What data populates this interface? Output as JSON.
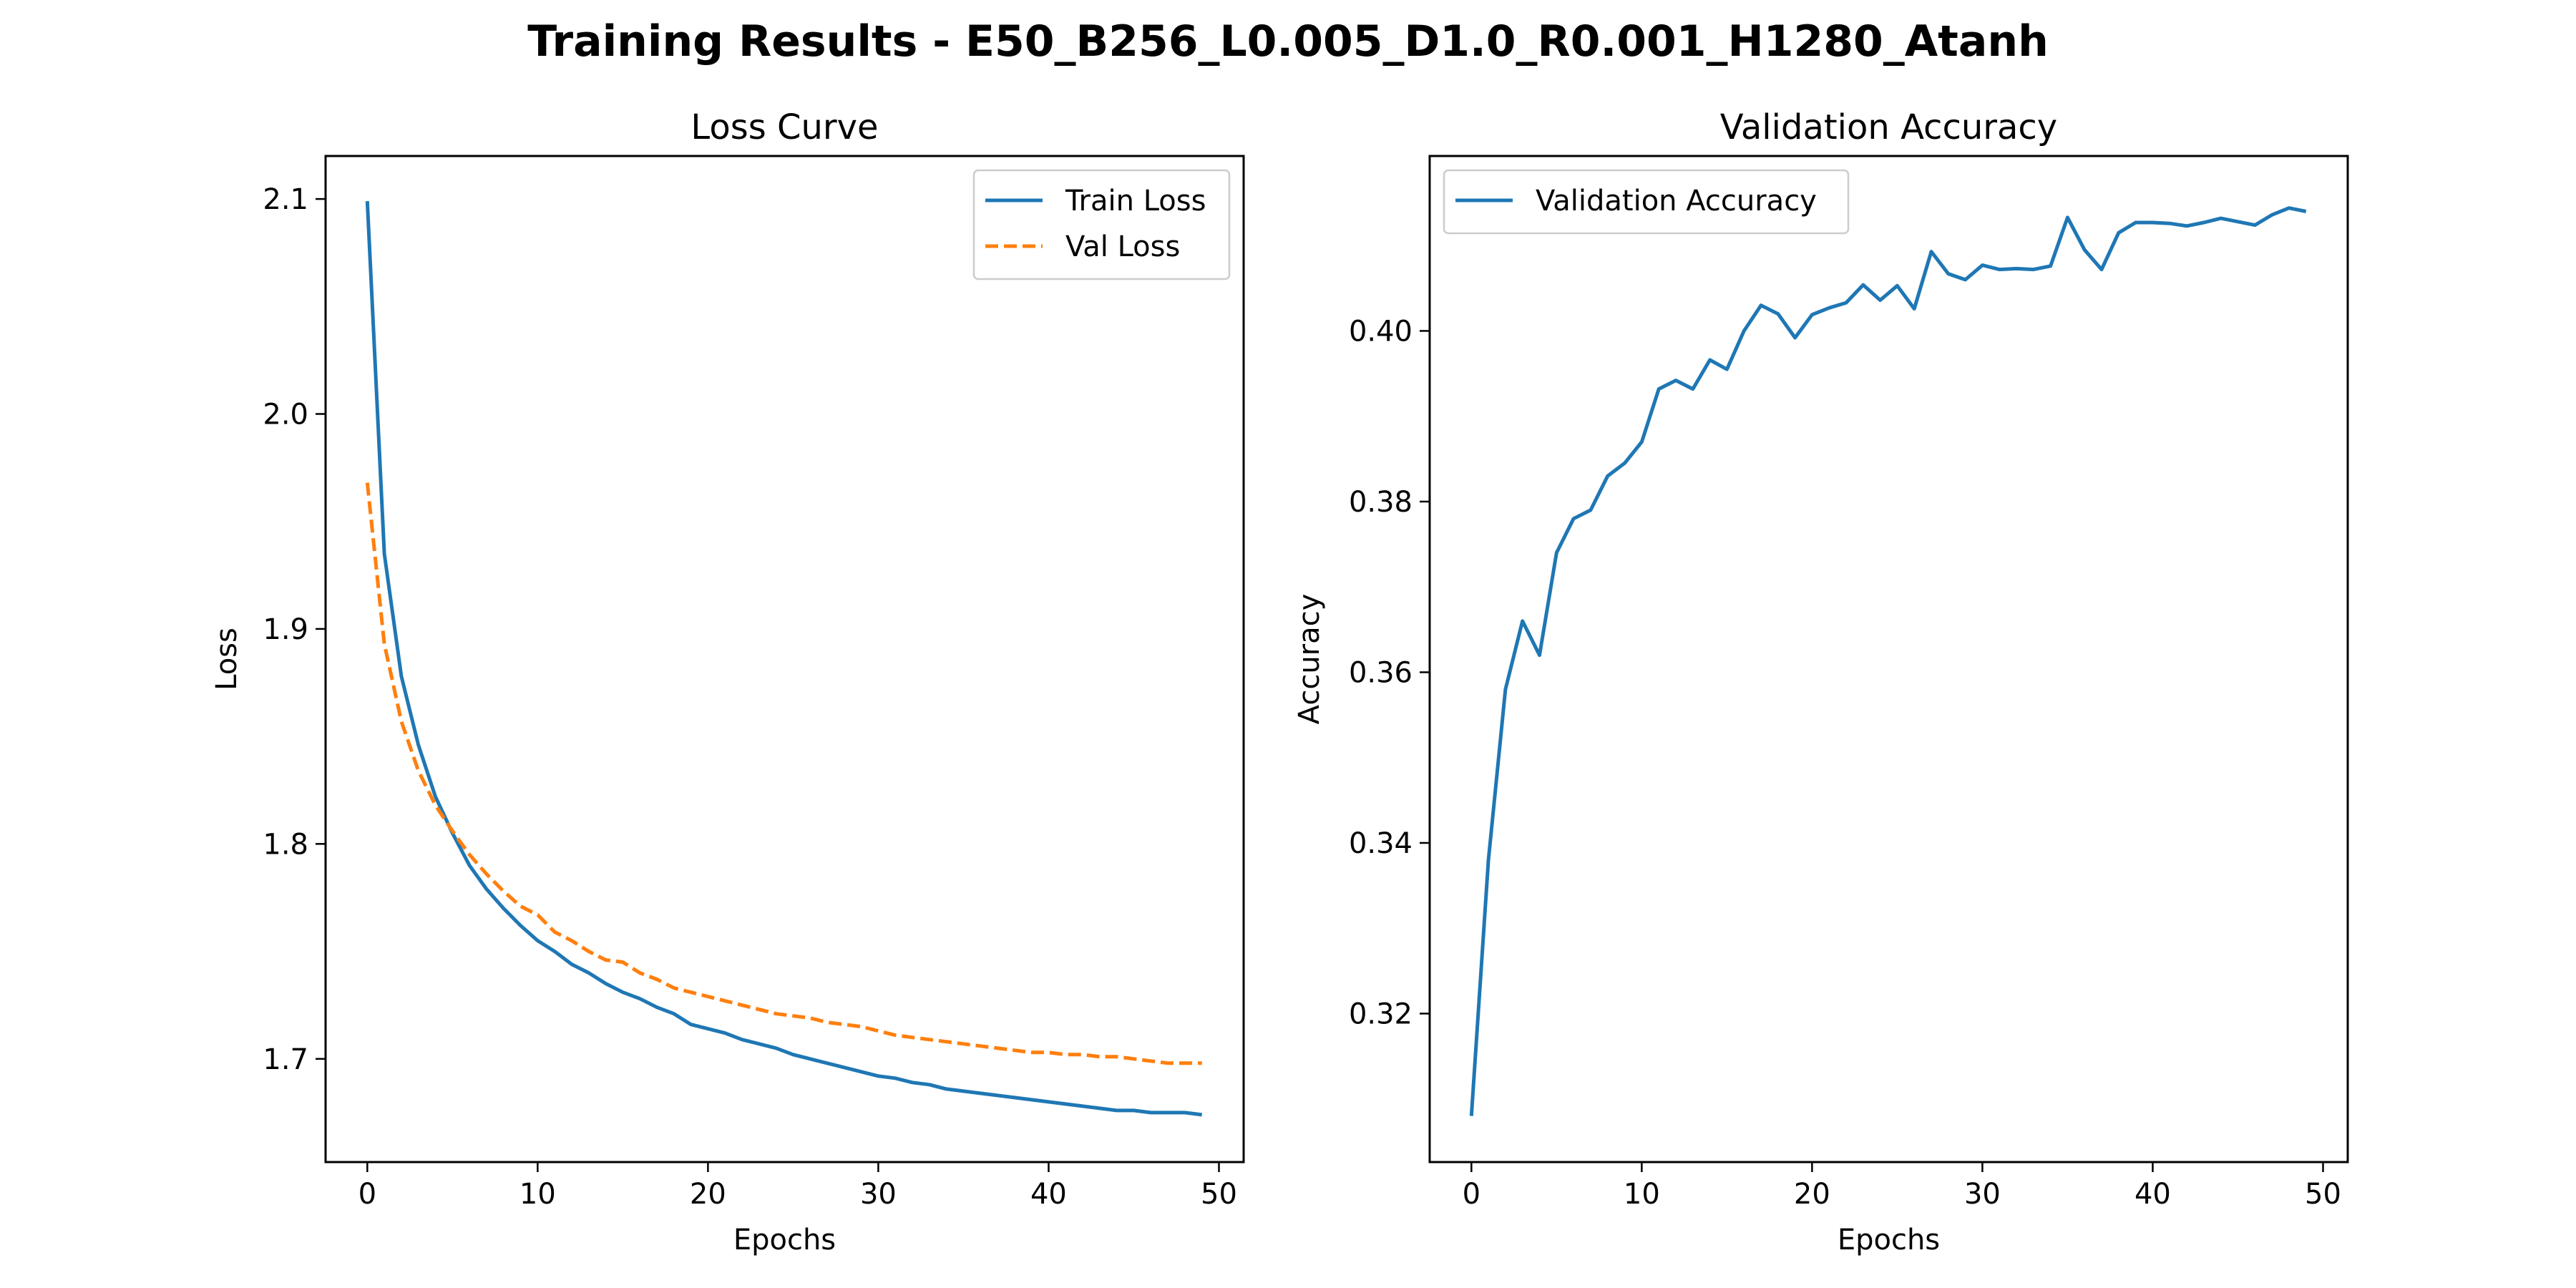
{
  "figure": {
    "title": "Training Results - E50_B256_L0.005_D1.0_R0.001_H1280_Atanh"
  },
  "chart_data": [
    {
      "type": "line",
      "title": "Loss Curve",
      "xlabel": "Epochs",
      "ylabel": "Loss",
      "xlim": [
        -2.45,
        51.45
      ],
      "ylim": [
        1.652,
        2.12
      ],
      "xticks": [
        0,
        10,
        20,
        30,
        40,
        50
      ],
      "yticks": [
        1.7,
        1.8,
        1.9,
        2.0,
        2.1
      ],
      "ytick_format": 1,
      "legend_position": "upper right",
      "grid": false,
      "x": [
        0,
        1,
        2,
        3,
        4,
        5,
        6,
        7,
        8,
        9,
        10,
        11,
        12,
        13,
        14,
        15,
        16,
        17,
        18,
        19,
        20,
        21,
        22,
        23,
        24,
        25,
        26,
        27,
        28,
        29,
        30,
        31,
        32,
        33,
        34,
        35,
        36,
        37,
        38,
        39,
        40,
        41,
        42,
        43,
        44,
        45,
        46,
        47,
        48,
        49
      ],
      "series": [
        {
          "name": "Train Loss",
          "color": "#1f77b4",
          "dash": "solid",
          "values": [
            2.099,
            1.935,
            1.878,
            1.846,
            1.822,
            1.805,
            1.79,
            1.779,
            1.77,
            1.762,
            1.755,
            1.75,
            1.744,
            1.74,
            1.735,
            1.731,
            1.728,
            1.724,
            1.721,
            1.716,
            1.714,
            1.712,
            1.709,
            1.707,
            1.705,
            1.702,
            1.7,
            1.698,
            1.696,
            1.694,
            1.692,
            1.691,
            1.689,
            1.688,
            1.686,
            1.685,
            1.684,
            1.683,
            1.682,
            1.681,
            1.68,
            1.679,
            1.678,
            1.677,
            1.676,
            1.676,
            1.675,
            1.675,
            1.675,
            1.674
          ]
        },
        {
          "name": "Val Loss",
          "color": "#ff7f0e",
          "dash": "dashed",
          "values": [
            1.968,
            1.893,
            1.857,
            1.834,
            1.818,
            1.806,
            1.795,
            1.786,
            1.778,
            1.771,
            1.767,
            1.759,
            1.755,
            1.75,
            1.746,
            1.745,
            1.74,
            1.737,
            1.733,
            1.731,
            1.729,
            1.727,
            1.725,
            1.723,
            1.721,
            1.72,
            1.719,
            1.717,
            1.716,
            1.715,
            1.713,
            1.711,
            1.71,
            1.709,
            1.708,
            1.707,
            1.706,
            1.705,
            1.704,
            1.703,
            1.703,
            1.702,
            1.702,
            1.701,
            1.701,
            1.7,
            1.699,
            1.698,
            1.698,
            1.698
          ]
        }
      ]
    },
    {
      "type": "line",
      "title": "Validation Accuracy",
      "xlabel": "Epochs",
      "ylabel": "Accuracy",
      "xlim": [
        -2.45,
        51.45
      ],
      "ylim": [
        0.3026,
        0.4205
      ],
      "xticks": [
        0,
        10,
        20,
        30,
        40,
        50
      ],
      "yticks": [
        0.32,
        0.34,
        0.36,
        0.38,
        0.4
      ],
      "ytick_format": 2,
      "legend_position": "upper left",
      "grid": false,
      "x": [
        0,
        1,
        2,
        3,
        4,
        5,
        6,
        7,
        8,
        9,
        10,
        11,
        12,
        13,
        14,
        15,
        16,
        17,
        18,
        19,
        20,
        21,
        22,
        23,
        24,
        25,
        26,
        27,
        28,
        29,
        30,
        31,
        32,
        33,
        34,
        35,
        36,
        37,
        38,
        39,
        40,
        41,
        42,
        43,
        44,
        45,
        46,
        47,
        48,
        49
      ],
      "series": [
        {
          "name": "Validation Accuracy",
          "color": "#1f77b4",
          "dash": "solid",
          "values": [
            0.308,
            0.338,
            0.358,
            0.366,
            0.362,
            0.374,
            0.378,
            0.379,
            0.383,
            0.3845,
            0.387,
            0.3932,
            0.3942,
            0.3932,
            0.3966,
            0.3955,
            0.4,
            0.403,
            0.402,
            0.3992,
            0.4019,
            0.4027,
            0.4033,
            0.4054,
            0.4036,
            0.4053,
            0.4026,
            0.4093,
            0.4067,
            0.406,
            0.4077,
            0.4072,
            0.4073,
            0.4072,
            0.4076,
            0.4133,
            0.4095,
            0.4072,
            0.4115,
            0.4127,
            0.4127,
            0.4126,
            0.4123,
            0.4127,
            0.4132,
            0.4128,
            0.4124,
            0.4136,
            0.4144,
            0.414
          ]
        }
      ]
    }
  ]
}
